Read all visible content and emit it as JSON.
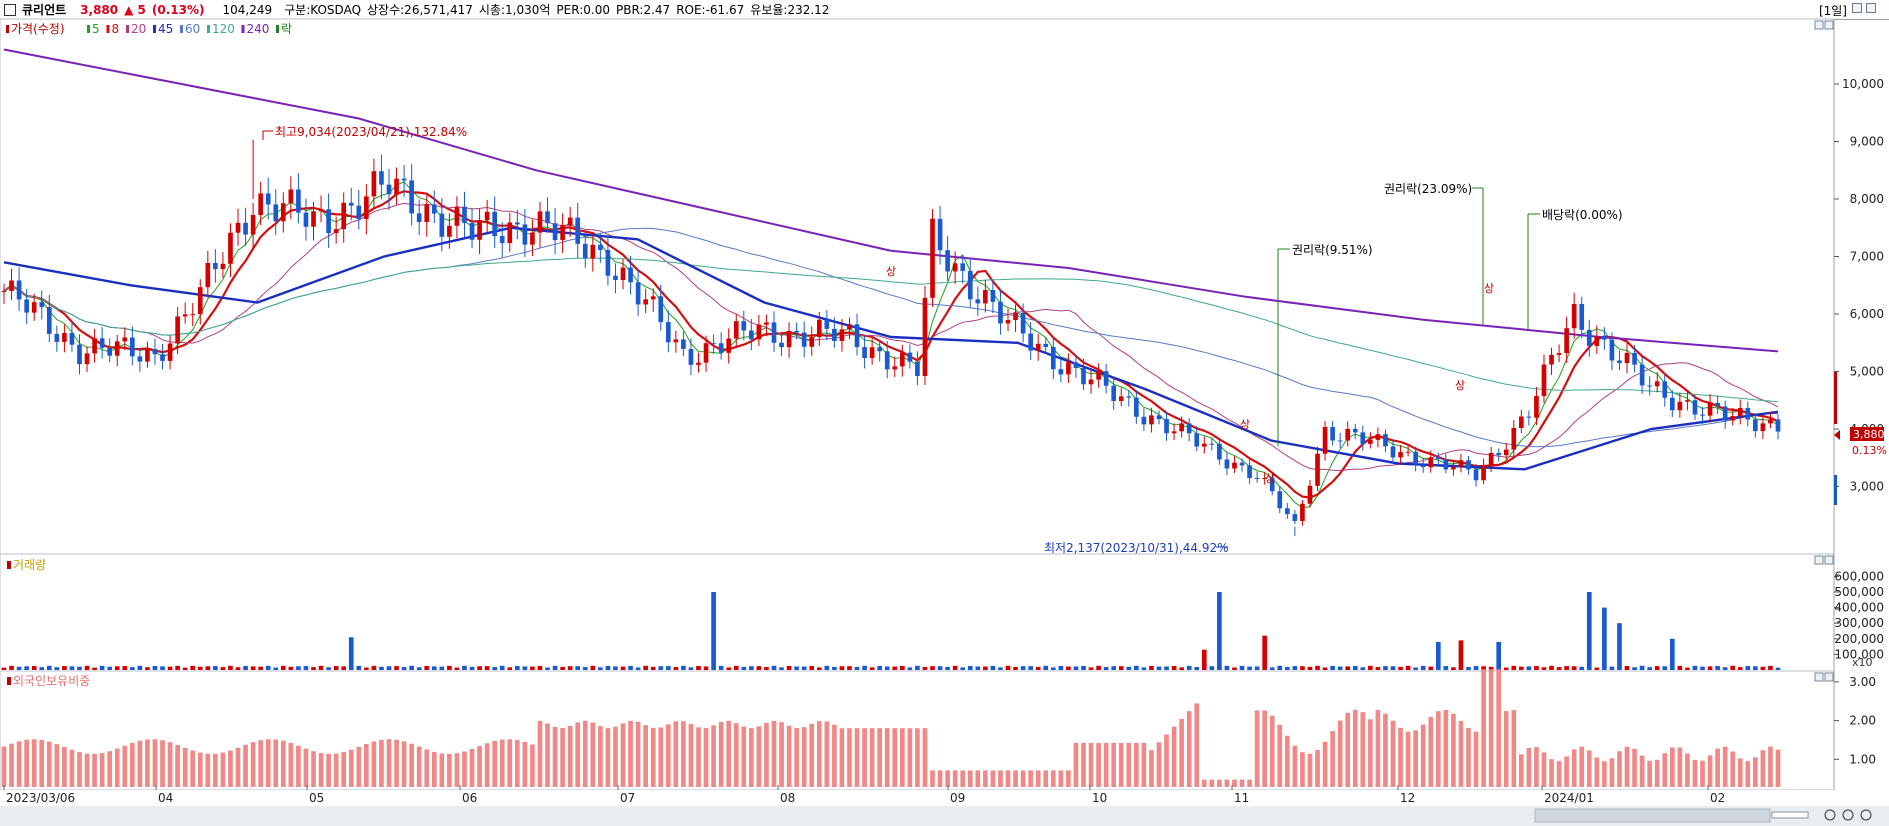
{
  "header": {
    "name": "큐리언트",
    "price": "3,880",
    "change": "▲ 5",
    "change_pct": "(0.13%)",
    "volume": "104,249",
    "market": "구분:KOSDAQ",
    "shares": "상장수:26,571,417",
    "market_cap": "시총:1,030억",
    "per": "PER:0.00",
    "pbr": "PBR:2.47",
    "roe": "ROE:-61.67",
    "float": "유보율:232.12",
    "timeframe": "[1일]"
  },
  "price_panel": {
    "legend": [
      {
        "label": "가격(수정)",
        "color": "#c00000"
      },
      {
        "label": "5",
        "color": "#20a020"
      },
      {
        "label": "8",
        "color": "#d01010"
      },
      {
        "label": "20",
        "color": "#b04080"
      },
      {
        "label": "45",
        "color": "#1a2ec0"
      },
      {
        "label": "60",
        "color": "#5a78c8"
      },
      {
        "label": "120",
        "color": "#40a890"
      },
      {
        "label": "240",
        "color": "#7a22b8"
      },
      {
        "label": "락",
        "color": "#208020"
      }
    ],
    "y_ticks": [
      "10,000",
      "9,000",
      "8,000",
      "7,000",
      "6,000",
      "5,000",
      "4,000",
      "3,000"
    ],
    "current_price_label": "3,880",
    "current_pct_label": "0.13%",
    "annotations": {
      "high": "최고9,034(2023/04/21),132.84%",
      "low": "최저2,137(2023/10/31),44.92%",
      "rights1": "권리락(9.51%)",
      "rights2": "권리락(23.09%)",
      "dividend": "배당락(0.00%)",
      "limit_up": "상"
    }
  },
  "volume_panel": {
    "title": "거래량",
    "y_ticks": [
      "600,000",
      "500,000",
      "400,000",
      "300,000",
      "200,000",
      "100,000"
    ],
    "unit": "x10"
  },
  "foreign_panel": {
    "title": "외국인보유비중",
    "y_ticks": [
      "3.00",
      "2.00",
      "1.00"
    ]
  },
  "x_axis": {
    "labels": [
      "2023/03/06",
      "04",
      "05",
      "06",
      "07",
      "08",
      "09",
      "10",
      "11",
      "12",
      "2024/01",
      "02"
    ]
  },
  "chart_data": {
    "type": "candlestick",
    "title": "큐리언트",
    "x_range": [
      "2023/03/06",
      "2024/02"
    ],
    "ylim": [
      2000,
      10800
    ],
    "price_points": [
      {
        "date": "2023/03/06",
        "close": 6400
      },
      {
        "date": "2023/03/20",
        "close": 5400
      },
      {
        "date": "2023/04/03",
        "close": 5300
      },
      {
        "date": "2023/04/12",
        "close": 6300
      },
      {
        "date": "2023/04/21",
        "close": 8000,
        "high": 9034
      },
      {
        "date": "2023/05/02",
        "close": 7600
      },
      {
        "date": "2023/05/16",
        "close": 8200
      },
      {
        "date": "2023/06/01",
        "close": 7400
      },
      {
        "date": "2023/06/12",
        "close": 7600
      },
      {
        "date": "2023/06/26",
        "close": 7000
      },
      {
        "date": "2023/07/10",
        "close": 5300
      },
      {
        "date": "2023/07/24",
        "close": 5700
      },
      {
        "date": "2023/08/10",
        "close": 5600
      },
      {
        "date": "2023/08/22",
        "close": 5000
      },
      {
        "date": "2023/08/25",
        "close": 7300
      },
      {
        "date": "2023/09/08",
        "close": 5800
      },
      {
        "date": "2023/09/22",
        "close": 4900
      },
      {
        "date": "2023/10/10",
        "close": 3900
      },
      {
        "date": "2023/10/24",
        "close": 3200
      },
      {
        "date": "2023/10/31",
        "close": 2300,
        "low": 2137
      },
      {
        "date": "2023/11/06",
        "close": 4000
      },
      {
        "date": "2023/11/20",
        "close": 3600
      },
      {
        "date": "2023/12/04",
        "close": 3200
      },
      {
        "date": "2023/12/14",
        "close": 4300
      },
      {
        "date": "2023/12/22",
        "close": 6000
      },
      {
        "date": "2024/01/05",
        "close": 4700
      },
      {
        "date": "2024/01/19",
        "close": 4200
      },
      {
        "date": "2024/02/05",
        "close": 4100
      },
      {
        "date": "2024/02/19",
        "close": 3880
      }
    ],
    "moving_averages": [
      {
        "name": "45",
        "values": [
          6900,
          6500,
          6200,
          7000,
          7500,
          7300,
          6200,
          5600,
          5500,
          4700,
          3800,
          3400,
          3300,
          4000,
          4300
        ]
      },
      {
        "name": "240",
        "values": [
          10600,
          10000,
          9400,
          8500,
          7800,
          7100,
          6800,
          6300,
          5900,
          5600,
          5350
        ]
      }
    ],
    "volume_max_label": 600000,
    "foreign_ratio_max": 3.2
  }
}
